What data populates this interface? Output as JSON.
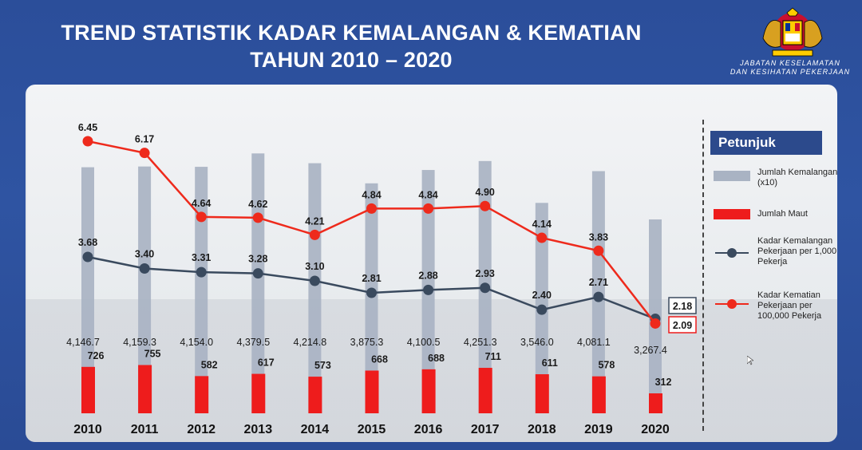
{
  "header": {
    "title_line1": "TREND STATISTIK KADAR KEMALANGAN & KEMATIAN",
    "title_line2": "TAHUN 2010 – 2020",
    "agency_line1": "JABATAN KESELAMATAN",
    "agency_line2": "DAN KESIHATAN PEKERJAAN"
  },
  "legend": {
    "title": "Petunjuk",
    "items": [
      {
        "label": "Jumlah Kemalangan (x10)",
        "color": "#a9b3c3"
      },
      {
        "label": "Jumlah Maut",
        "color": "#ee1c1c"
      },
      {
        "label": "Kadar Kemalangan Pekerjaan per 1,000 Pekerja",
        "color": "#3a4a5e"
      },
      {
        "label": "Kadar Kematian Pekerjaan per 100,000 Pekerja",
        "color": "#ee2a1c"
      }
    ]
  },
  "colors": {
    "accidents_bar": "#a9b3c3",
    "fatal_bar": "#ee1c1c",
    "accident_rate_line": "#3a4a5e",
    "death_rate_line": "#ee2a1c",
    "header_bg": "#2c4f9b"
  },
  "chart_data": {
    "type": "bar",
    "categories": [
      "2010",
      "2011",
      "2012",
      "2013",
      "2014",
      "2015",
      "2016",
      "2017",
      "2018",
      "2019",
      "2020"
    ],
    "series": [
      {
        "name": "Jumlah Kemalangan (x10)",
        "type": "bar",
        "values": [
          4146.7,
          4159.3,
          4154.0,
          4379.5,
          4214.8,
          3875.3,
          4100.5,
          4251.3,
          3546.0,
          4081.1,
          3267.4
        ],
        "labels": [
          "4,146.7",
          "4,159.3",
          "4,154.0",
          "4,379.5",
          "4,214.8",
          "3,875.3",
          "4,100.5",
          "4,251.3",
          "3,546.0",
          "4,081.1",
          "3,267.4"
        ]
      },
      {
        "name": "Jumlah Maut",
        "type": "bar",
        "values": [
          726,
          755,
          582,
          617,
          573,
          668,
          688,
          711,
          611,
          578,
          312
        ],
        "labels": [
          "726",
          "755",
          "582",
          "617",
          "573",
          "668",
          "688",
          "711",
          "611",
          "578",
          "312"
        ]
      },
      {
        "name": "Kadar Kemalangan Pekerjaan per 1,000 Pekerja",
        "type": "line",
        "values": [
          3.68,
          3.4,
          3.31,
          3.28,
          3.1,
          2.81,
          2.88,
          2.93,
          2.4,
          2.71,
          2.18
        ],
        "labels": [
          "3.68",
          "3.40",
          "3.31",
          "3.28",
          "3.10",
          "2.81",
          "2.88",
          "2.93",
          "2.40",
          "2.71",
          "2.18"
        ]
      },
      {
        "name": "Kadar Kematian Pekerjaan per 100,000 Pekerja",
        "type": "line",
        "values": [
          6.45,
          6.17,
          4.64,
          4.62,
          4.21,
          4.84,
          4.84,
          4.9,
          4.14,
          3.83,
          2.09
        ],
        "labels": [
          "6.45",
          "6.17",
          "4.64",
          "4.62",
          "4.21",
          "4.84",
          "4.84",
          "4.90",
          "4.14",
          "3.83",
          "2.09"
        ]
      }
    ],
    "title": "TREND STATISTIK KADAR KEMALANGAN & KEMATIAN TAHUN 2010 – 2020",
    "legend_position": "right",
    "grid": false
  }
}
